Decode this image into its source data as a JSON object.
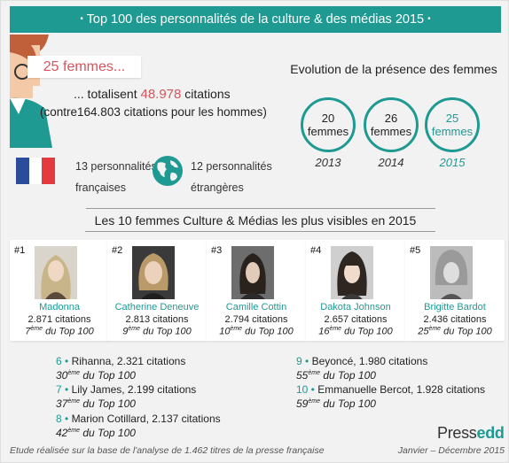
{
  "header": {
    "title": "Top 100 des personnalités de la culture & des médias 2015",
    "bullet": "•"
  },
  "summary": {
    "women_count": "25 femmes...",
    "total_prefix": "... totalisent",
    "total_citations": "48.978",
    "total_suffix": "citations",
    "men_prefix": "(contre",
    "men_citations": "164.803",
    "men_suffix": "citations pour les hommes)"
  },
  "origins": {
    "french_line1": "13 personnalités",
    "french_line2": "françaises",
    "foreign_line1": "12 personnalités",
    "foreign_line2": "étrangères"
  },
  "evolution": {
    "title": "Evolution de la présence des femmes",
    "years": [
      {
        "count": "20",
        "label": "femmes",
        "year": "2013"
      },
      {
        "count": "26",
        "label": "femmes",
        "year": "2014"
      },
      {
        "count": "25",
        "label": "femmes",
        "year": "2015"
      }
    ]
  },
  "top10": {
    "title": "Les 10  femmes Culture & Médias les plus visibles en 2015",
    "cards": [
      {
        "rank": "#1",
        "name": "Madonna",
        "citations": "2.871 citations",
        "rank_num": "7",
        "rank_sup": "ème",
        "rank_text": "du Top 100"
      },
      {
        "rank": "#2",
        "name": "Catherine Deneuve",
        "citations": "2.813 citations",
        "rank_num": "9",
        "rank_sup": "ème",
        "rank_text": "du Top 100"
      },
      {
        "rank": "#3",
        "name": "Camille Cottin",
        "citations": "2.794 citations",
        "rank_num": "10",
        "rank_sup": "ème",
        "rank_text": "du Top 100"
      },
      {
        "rank": "#4",
        "name": "Dakota Johnson",
        "citations": "2.657 citations",
        "rank_num": "16",
        "rank_sup": "ème",
        "rank_text": "du Top 100"
      },
      {
        "rank": "#5",
        "name": "Brigitte Bardot",
        "citations": "2.436 citations",
        "rank_num": "25",
        "rank_sup": "ème",
        "rank_text": "du Top 100"
      }
    ],
    "others": [
      {
        "num": "6 •",
        "name": "Rihanna",
        "citations": ", 2.321 citations",
        "rank_num": "30",
        "rank_sup": "ème",
        "rank_text": "du Top 100"
      },
      {
        "num": "7 •",
        "name": "Lily James",
        "citations": ", 2.199 citations",
        "rank_num": "37",
        "rank_sup": "ème",
        "rank_text": "du Top 100"
      },
      {
        "num": "8 •",
        "name": "Marion Cotillard",
        "citations": ", 2.137 citations",
        "rank_num": "42",
        "rank_sup": "ème",
        "rank_text": "du Top 100"
      },
      {
        "num": "9 •",
        "name": "Beyoncé",
        "citations": ", 1.980 citations",
        "rank_num": "55",
        "rank_sup": "ème",
        "rank_text": "du Top 100"
      },
      {
        "num": "10 •",
        "name": "Emmanuelle Bercot",
        "citations": ", 1.928 citations",
        "rank_num": "59",
        "rank_sup": "ème",
        "rank_text": "du Top 100"
      }
    ]
  },
  "footer": {
    "note": "Etude réalisée sur la base de l'analyse de 1.462 titres de la presse française",
    "brand_a": "Press",
    "brand_b": "edd",
    "date": "Janvier – Décembre 2015"
  },
  "colors": {
    "accent": "#1e9a93",
    "highlight": "#d4545c",
    "flag_blue": "#2b4b9b",
    "flag_red": "#e23a3f"
  },
  "icons": [
    "woman-avatar-icon",
    "french-flag-icon",
    "globe-icon"
  ]
}
